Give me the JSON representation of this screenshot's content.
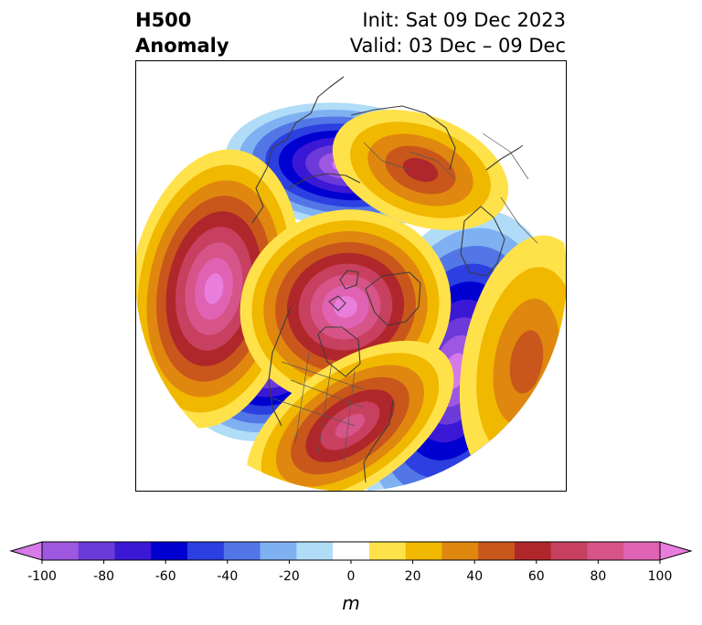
{
  "header": {
    "title_line1": "H500",
    "title_line2": "Anomaly",
    "init": "Init: Sat 09 Dec 2023",
    "valid": "Valid: 03 Dec – 09 Dec"
  },
  "colorbar": {
    "unit": "m",
    "ticks": [
      "-100",
      "-80",
      "-60",
      "-40",
      "-20",
      "0",
      "20",
      "40",
      "60",
      "80",
      "100"
    ],
    "colors": [
      "#d67ae8",
      "#9d57e0",
      "#6b3ad8",
      "#3b17d6",
      "#0000d0",
      "#2c3fe0",
      "#5276e6",
      "#7fb1f2",
      "#b0dcf7",
      "#ffffff",
      "#ffe24a",
      "#f1b800",
      "#e0870f",
      "#c9571b",
      "#b0272b",
      "#c8405f",
      "#d65488",
      "#df63b2",
      "#e97ddc"
    ]
  },
  "map": {
    "projection": "polar-stereographic",
    "variable": "500 hPa geopotential height anomaly",
    "features": [
      {
        "name": "negative-anomaly-north-atlantic",
        "sign": "negative",
        "peak_m": -100
      },
      {
        "name": "negative-anomaly-alaska-bering",
        "sign": "negative",
        "peak_m": -100
      },
      {
        "name": "negative-anomaly-eastern-north-america",
        "sign": "negative",
        "peak_m": -100
      },
      {
        "name": "positive-anomaly-pacific",
        "sign": "positive",
        "peak_m": 100
      },
      {
        "name": "positive-anomaly-arctic",
        "sign": "positive",
        "peak_m": 100
      },
      {
        "name": "positive-anomaly-western-us",
        "sign": "positive",
        "peak_m": 80
      },
      {
        "name": "positive-anomaly-eastern-asia",
        "sign": "positive",
        "peak_m": 60
      },
      {
        "name": "positive-anomaly-siberia",
        "sign": "positive",
        "peak_m": 40
      }
    ]
  }
}
